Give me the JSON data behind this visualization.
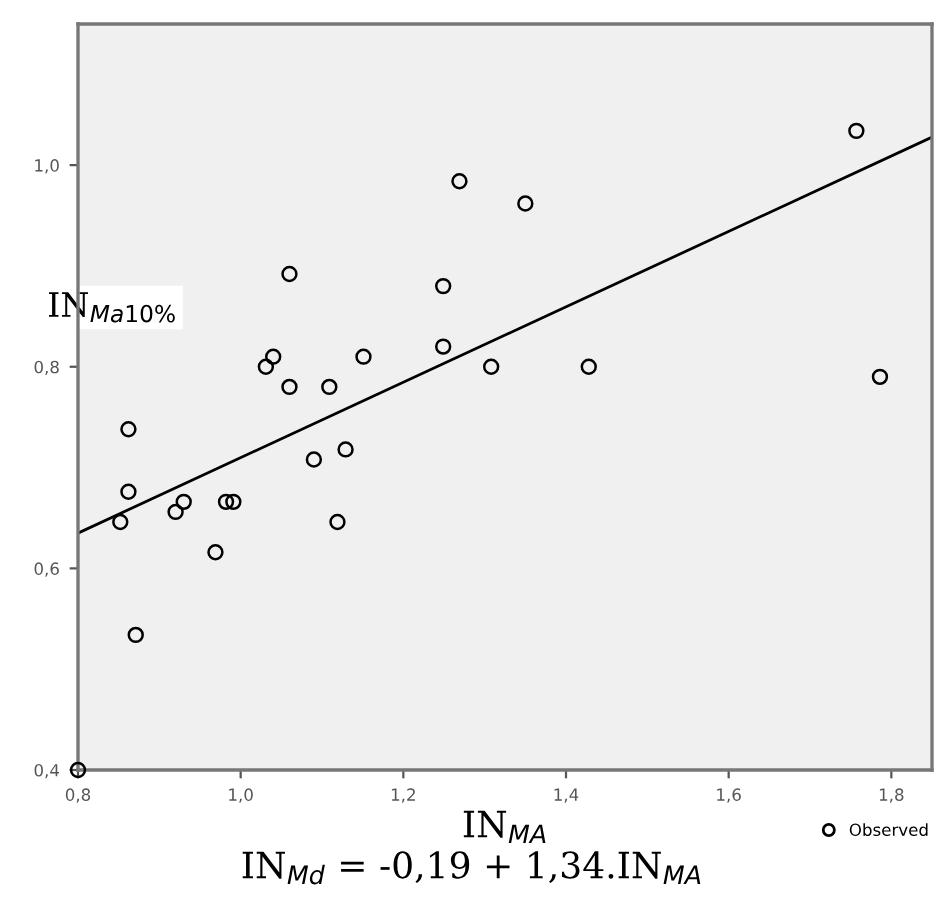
{
  "chart_data": {
    "type": "scatter",
    "xlabel": "IN$_{MA}$",
    "ylabel": "IN$_{Ma10%}$",
    "annotations": [
      "IN$_{Md}$ = -0,19 + 1,34.IN$_{MA}$"
    ],
    "xlim": [
      0.8,
      1.85
    ],
    "ylim": [
      0.4,
      1.14
    ],
    "xticks": [
      {
        "value": 0.8,
        "label": "0,8"
      },
      {
        "value": 1.0,
        "label": "1,0"
      },
      {
        "value": 1.2,
        "label": "1,2"
      },
      {
        "value": 1.4,
        "label": "1,4"
      },
      {
        "value": 1.6,
        "label": "1,6"
      },
      {
        "value": 1.8,
        "label": "1,8"
      }
    ],
    "yticks": [
      {
        "value": 0.4,
        "label": "0,4"
      },
      {
        "value": 0.6,
        "label": "0,6"
      },
      {
        "value": 0.8,
        "label": "0,8"
      },
      {
        "value": 1.0,
        "label": "1,0"
      }
    ],
    "grid": false,
    "legend": "bottom right",
    "series": [
      {
        "name": "Observed",
        "marker": "circle",
        "color": "#000000",
        "x": [
          1.757,
          1.269,
          1.35,
          1.06,
          1.249,
          1.04,
          1.031,
          1.151,
          1.249,
          1.308,
          1.428,
          1.786,
          1.06,
          1.109,
          0.862,
          1.09,
          1.129,
          0.862,
          0.852,
          0.93,
          0.92,
          0.982,
          0.991,
          1.119,
          0.969,
          0.871,
          0.8
        ],
        "values": [
          1.034,
          0.984,
          0.962,
          0.892,
          0.88,
          0.81,
          0.8,
          0.81,
          0.82,
          0.8,
          0.8,
          0.79,
          0.78,
          0.78,
          0.738,
          0.708,
          0.718,
          0.676,
          0.646,
          0.666,
          0.656,
          0.666,
          0.666,
          0.646,
          0.616,
          0.534,
          0.4
        ]
      },
      {
        "type": "line",
        "color": "#000000",
        "x": [
          0.8,
          1.848
        ],
        "values": [
          0.635,
          1.027
        ]
      }
    ]
  }
}
